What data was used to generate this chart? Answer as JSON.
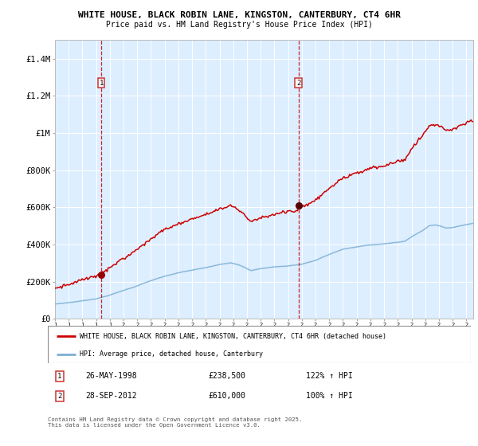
{
  "title1": "WHITE HOUSE, BLACK ROBIN LANE, KINGSTON, CANTERBURY, CT4 6HR",
  "title2": "Price paid vs. HM Land Registry's House Price Index (HPI)",
  "legend_red": "WHITE HOUSE, BLACK ROBIN LANE, KINGSTON, CANTERBURY, CT4 6HR (detached house)",
  "legend_blue": "HPI: Average price, detached house, Canterbury",
  "annotation1_label": "1",
  "annotation1_date": "26-MAY-1998",
  "annotation1_price": "£238,500",
  "annotation1_hpi": "122% ↑ HPI",
  "annotation2_label": "2",
  "annotation2_date": "28-SEP-2012",
  "annotation2_price": "£610,000",
  "annotation2_hpi": "100% ↑ HPI",
  "footer": "Contains HM Land Registry data © Crown copyright and database right 2025.\nThis data is licensed under the Open Government Licence v3.0.",
  "red_color": "#cc0000",
  "blue_color": "#7bafd4",
  "bg_color": "#ddeeff",
  "marker1_x": 1998.38,
  "marker1_y": 238500,
  "marker2_x": 2012.75,
  "marker2_y": 610000,
  "vline1_x": 1998.38,
  "vline2_x": 2012.75,
  "ylim": [
    0,
    1500000
  ],
  "xlim": [
    1995.0,
    2025.5
  ],
  "yticks": [
    0,
    200000,
    400000,
    600000,
    800000,
    1000000,
    1200000,
    1400000
  ],
  "ytick_labels": [
    "£0",
    "£200K",
    "£400K",
    "£600K",
    "£800K",
    "£1M",
    "£1.2M",
    "£1.4M"
  ]
}
